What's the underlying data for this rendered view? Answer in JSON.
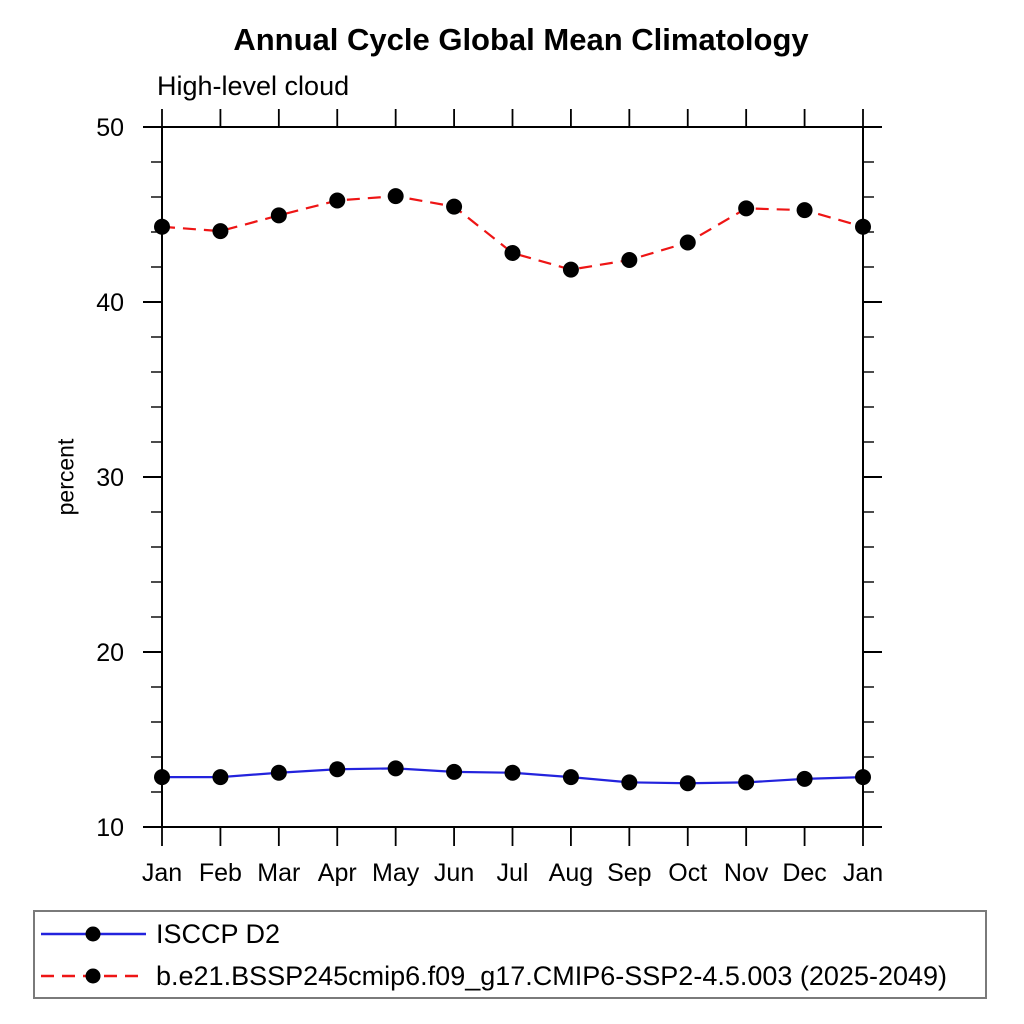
{
  "chart_data": {
    "type": "line",
    "title": "Annual Cycle Global Mean Climatology",
    "subtitle": "High-level cloud",
    "ylabel": "percent",
    "xlabel": "",
    "categories": [
      "Jan",
      "Feb",
      "Mar",
      "Apr",
      "May",
      "Jun",
      "Jul",
      "Aug",
      "Sep",
      "Oct",
      "Nov",
      "Dec",
      "Jan"
    ],
    "ylim": [
      10,
      50
    ],
    "ytick_major_step": 10,
    "ytick_minor_step": 2,
    "grid": false,
    "legend_position": "bottom-left-box",
    "axis_color": "#000000",
    "marker": "filled-circle",
    "marker_color": "#000000",
    "series": [
      {
        "name": "ISCCP D2",
        "color": "#2323dd",
        "line_style": "solid",
        "values": [
          12.85,
          12.85,
          13.1,
          13.3,
          13.35,
          13.15,
          13.1,
          12.85,
          12.55,
          12.5,
          12.55,
          12.75,
          12.85
        ]
      },
      {
        "name": "b.e21.BSSP245cmip6.f09_g17.CMIP6-SSP2-4.5.003 (2025-2049)",
        "color": "#ee1515",
        "line_style": "dashed",
        "values": [
          44.3,
          44.05,
          44.95,
          45.8,
          46.05,
          45.45,
          42.8,
          41.85,
          42.4,
          43.4,
          45.35,
          45.25,
          44.3
        ]
      }
    ]
  }
}
